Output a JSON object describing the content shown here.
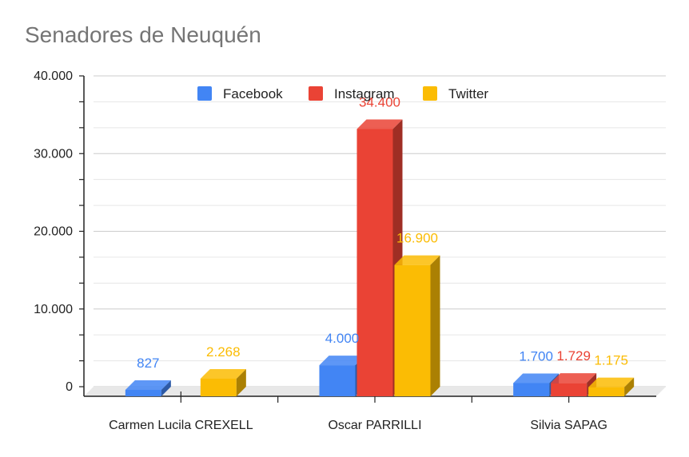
{
  "chart_data": {
    "type": "bar",
    "title": "Senadores de Neuquén",
    "categories": [
      "Carmen Lucila CREXELL",
      "Oscar PARRILLI",
      "Silvia SAPAG"
    ],
    "series": [
      {
        "name": "Facebook",
        "color": "#4285f4",
        "values": [
          827,
          4000,
          1700
        ],
        "labels": [
          "827",
          "4.000",
          "1.700"
        ]
      },
      {
        "name": "Instagram",
        "color": "#ea4335",
        "values": [
          0,
          34400,
          1729
        ],
        "labels": [
          "",
          "34.400",
          "1.729"
        ]
      },
      {
        "name": "Twitter",
        "color": "#fbbc04",
        "values": [
          2268,
          16900,
          1175
        ],
        "labels": [
          "2.268",
          "16.900",
          "1.175"
        ]
      }
    ],
    "yticks": [
      {
        "value": 0,
        "label": "0"
      },
      {
        "value": 10000,
        "label": "10.000"
      },
      {
        "value": 20000,
        "label": "20.000"
      },
      {
        "value": 30000,
        "label": "30.000"
      },
      {
        "value": 40000,
        "label": "40.000"
      }
    ],
    "ylim": [
      0,
      40000
    ],
    "grid": true,
    "legend_position": "top",
    "style_3d": true
  }
}
